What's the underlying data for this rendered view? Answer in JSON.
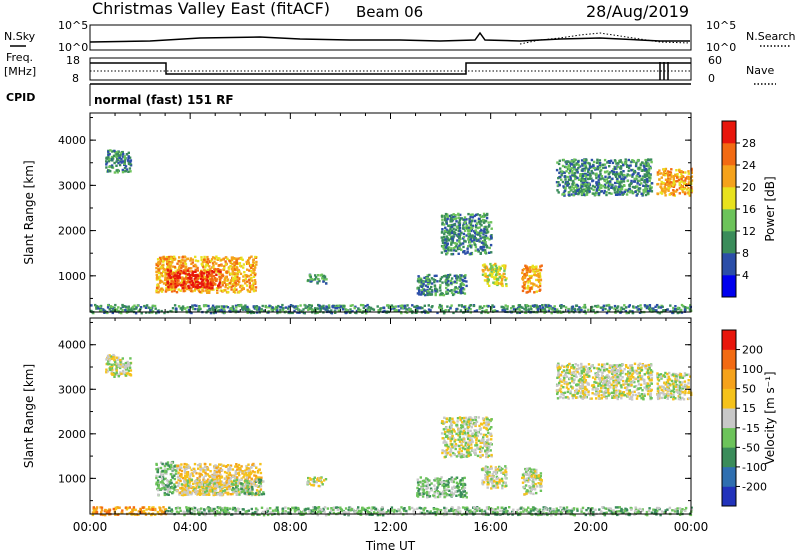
{
  "header": {
    "title": "Christmas Valley East (fitACF)",
    "beam": "Beam 06",
    "date": "28/Aug/2019"
  },
  "top_panels": {
    "nsky_label": "N.Sky",
    "nsearch_label": "N.Search",
    "freq_label_line1": "Freq.",
    "freq_label_line2": "[MHz]",
    "nave_label": "Nave",
    "cpid_label": "CPID",
    "cpid_text": "normal (fast) 151 RF",
    "noise_ticks_left": [
      "10^5",
      "10^0"
    ],
    "noise_ticks_right": [
      "10^5",
      "10^0"
    ],
    "freq_ticks_left": [
      "18",
      "8"
    ],
    "freq_ticks_right": [
      "60",
      "0"
    ]
  },
  "chart_data": [
    {
      "type": "heatmap",
      "name": "power",
      "ylabel": "Slant Range [km]",
      "xlabel": "",
      "ylim": [
        200,
        4600
      ],
      "yticks": [
        "1000",
        "2000",
        "3000",
        "4000"
      ],
      "colorbar": {
        "label": "Power [dB]",
        "ticks": [
          "28",
          "24",
          "20",
          "16",
          "12",
          "8",
          "4"
        ],
        "colors": [
          "#0000ee",
          "#2b4ea8",
          "#3a8c5a",
          "#6cc35a",
          "#e8e21e",
          "#f5a21b",
          "#f26a12",
          "#e8160c"
        ]
      },
      "regions": [
        {
          "t0": 0.6,
          "t1": 1.6,
          "r0": 3300,
          "r1": 3800,
          "level": 2
        },
        {
          "t0": 2.6,
          "t1": 6.6,
          "r0": 650,
          "r1": 1450,
          "level": 5
        },
        {
          "t0": 3.0,
          "t1": 5.2,
          "r0": 750,
          "r1": 1150,
          "level": 7
        },
        {
          "t0": 8.6,
          "t1": 9.4,
          "r0": 850,
          "r1": 1050,
          "level": 2
        },
        {
          "t0": 14.0,
          "t1": 16.0,
          "r0": 1500,
          "r1": 2400,
          "level": 2
        },
        {
          "t0": 13.0,
          "t1": 15.0,
          "r0": 600,
          "r1": 1050,
          "level": 2
        },
        {
          "t0": 15.6,
          "t1": 16.6,
          "r0": 800,
          "r1": 1300,
          "level": 4
        },
        {
          "t0": 17.2,
          "t1": 18.0,
          "r0": 650,
          "r1": 1250,
          "level": 5
        },
        {
          "t0": 18.6,
          "t1": 22.4,
          "r0": 2800,
          "r1": 3600,
          "level": 2
        },
        {
          "t0": 22.6,
          "t1": 24.0,
          "r0": 2800,
          "r1": 3400,
          "level": 5
        },
        {
          "t0": 0.0,
          "t1": 24.0,
          "r0": 200,
          "r1": 380,
          "level": 2
        }
      ]
    },
    {
      "type": "heatmap",
      "name": "velocity",
      "xlabel": "Time UT",
      "ylabel": "Slant Range [km]",
      "ylim": [
        200,
        4600
      ],
      "yticks": [
        "1000",
        "2000",
        "3000",
        "4000"
      ],
      "xticks": [
        "00:00",
        "04:00",
        "08:00",
        "12:00",
        "16:00",
        "20:00",
        "00:00"
      ],
      "colorbar": {
        "label": "Velocity [m s⁻¹]",
        "ticks": [
          "200",
          "100",
          "50",
          "15",
          "-15",
          "-50",
          "-100",
          "-200"
        ],
        "colors": [
          "#2233bb",
          "#2f6fb0",
          "#3a8c5a",
          "#6cc35a",
          "#c8c8c8",
          "#f5c21b",
          "#f5a21b",
          "#f26a12",
          "#e8160c"
        ]
      },
      "regions": [
        {
          "t0": 0.6,
          "t1": 1.6,
          "r0": 3300,
          "r1": 3800,
          "cls": 4
        },
        {
          "t0": 2.6,
          "t1": 3.4,
          "r0": 650,
          "r1": 1400,
          "cls": 3
        },
        {
          "t0": 3.4,
          "t1": 6.8,
          "r0": 650,
          "r1": 1350,
          "cls": 5
        },
        {
          "t0": 3.6,
          "t1": 5.4,
          "r0": 650,
          "r1": 1000,
          "cls": 4
        },
        {
          "t0": 5.6,
          "t1": 6.9,
          "r0": 650,
          "r1": 1000,
          "cls": 3
        },
        {
          "t0": 8.6,
          "t1": 9.4,
          "r0": 850,
          "r1": 1050,
          "cls": 4
        },
        {
          "t0": 14.0,
          "t1": 16.0,
          "r0": 1500,
          "r1": 2400,
          "cls": 4
        },
        {
          "t0": 13.0,
          "t1": 15.0,
          "r0": 600,
          "r1": 1050,
          "cls": 3
        },
        {
          "t0": 15.6,
          "t1": 16.6,
          "r0": 800,
          "r1": 1300,
          "cls": 4
        },
        {
          "t0": 17.2,
          "t1": 18.0,
          "r0": 650,
          "r1": 1250,
          "cls": 4
        },
        {
          "t0": 18.6,
          "t1": 22.4,
          "r0": 2800,
          "r1": 3600,
          "cls": 4
        },
        {
          "t0": 22.6,
          "t1": 24.0,
          "r0": 2800,
          "r1": 3400,
          "cls": 4
        },
        {
          "t0": 0.0,
          "t1": 3.0,
          "r0": 200,
          "r1": 380,
          "cls": 6
        },
        {
          "t0": 3.0,
          "t1": 24.0,
          "r0": 200,
          "r1": 380,
          "cls": 3
        }
      ]
    }
  ]
}
